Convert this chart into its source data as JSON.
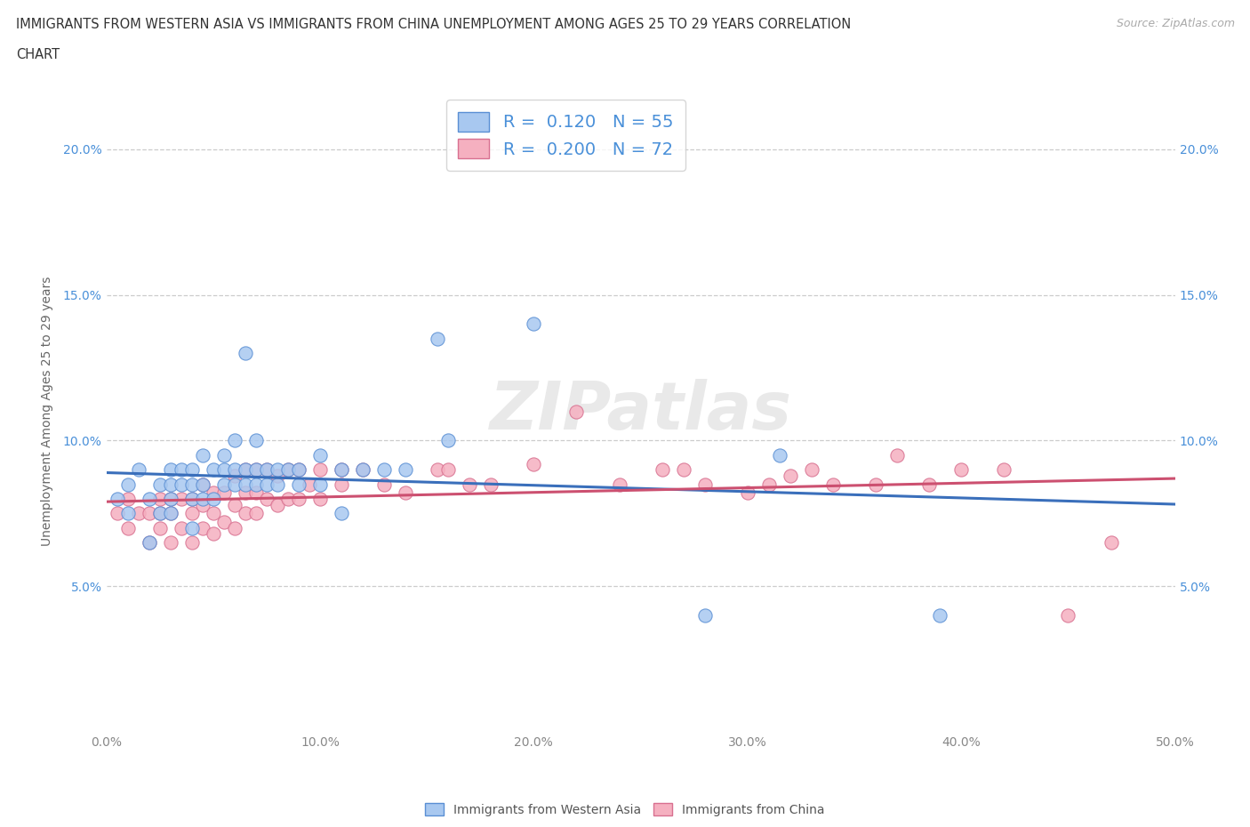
{
  "title_line1": "IMMIGRANTS FROM WESTERN ASIA VS IMMIGRANTS FROM CHINA UNEMPLOYMENT AMONG AGES 25 TO 29 YEARS CORRELATION",
  "title_line2": "CHART",
  "source": "Source: ZipAtlas.com",
  "ylabel": "Unemployment Among Ages 25 to 29 years",
  "xlim": [
    0.0,
    0.5
  ],
  "ylim": [
    0.0,
    0.22
  ],
  "xticks": [
    0.0,
    0.1,
    0.2,
    0.3,
    0.4,
    0.5
  ],
  "xticklabels": [
    "0.0%",
    "10.0%",
    "20.0%",
    "30.0%",
    "40.0%",
    "50.0%"
  ],
  "yticks": [
    0.0,
    0.05,
    0.1,
    0.15,
    0.2
  ],
  "yticklabels": [
    "",
    "5.0%",
    "10.0%",
    "15.0%",
    "20.0%"
  ],
  "R_blue": 0.12,
  "N_blue": 55,
  "R_pink": 0.2,
  "N_pink": 72,
  "blue_fill": "#a8c8f0",
  "blue_edge": "#5a8fd4",
  "pink_fill": "#f5b0c0",
  "pink_edge": "#d87090",
  "blue_line": "#3a6fbb",
  "pink_line": "#cc5070",
  "legend_color": "#4a90d9",
  "grid_color": "#cccccc",
  "blue_x": [
    0.005,
    0.01,
    0.01,
    0.015,
    0.02,
    0.02,
    0.025,
    0.025,
    0.03,
    0.03,
    0.03,
    0.03,
    0.035,
    0.035,
    0.04,
    0.04,
    0.04,
    0.04,
    0.045,
    0.045,
    0.045,
    0.05,
    0.05,
    0.055,
    0.055,
    0.055,
    0.06,
    0.06,
    0.06,
    0.065,
    0.065,
    0.065,
    0.07,
    0.07,
    0.07,
    0.075,
    0.075,
    0.08,
    0.08,
    0.085,
    0.09,
    0.09,
    0.1,
    0.1,
    0.11,
    0.11,
    0.12,
    0.13,
    0.14,
    0.155,
    0.16,
    0.2,
    0.28,
    0.315,
    0.39
  ],
  "blue_y": [
    0.08,
    0.085,
    0.075,
    0.09,
    0.065,
    0.08,
    0.075,
    0.085,
    0.075,
    0.08,
    0.085,
    0.09,
    0.085,
    0.09,
    0.07,
    0.08,
    0.085,
    0.09,
    0.08,
    0.085,
    0.095,
    0.08,
    0.09,
    0.085,
    0.09,
    0.095,
    0.085,
    0.09,
    0.1,
    0.085,
    0.09,
    0.13,
    0.085,
    0.09,
    0.1,
    0.085,
    0.09,
    0.085,
    0.09,
    0.09,
    0.085,
    0.09,
    0.085,
    0.095,
    0.09,
    0.075,
    0.09,
    0.09,
    0.09,
    0.135,
    0.1,
    0.14,
    0.04,
    0.095,
    0.04
  ],
  "pink_x": [
    0.005,
    0.01,
    0.01,
    0.015,
    0.02,
    0.02,
    0.025,
    0.025,
    0.025,
    0.03,
    0.03,
    0.03,
    0.035,
    0.035,
    0.04,
    0.04,
    0.04,
    0.045,
    0.045,
    0.045,
    0.05,
    0.05,
    0.05,
    0.055,
    0.055,
    0.06,
    0.06,
    0.06,
    0.065,
    0.065,
    0.065,
    0.07,
    0.07,
    0.07,
    0.075,
    0.075,
    0.08,
    0.08,
    0.085,
    0.085,
    0.09,
    0.09,
    0.095,
    0.1,
    0.1,
    0.11,
    0.11,
    0.12,
    0.13,
    0.14,
    0.155,
    0.16,
    0.17,
    0.18,
    0.2,
    0.22,
    0.24,
    0.26,
    0.27,
    0.28,
    0.3,
    0.31,
    0.32,
    0.33,
    0.34,
    0.36,
    0.37,
    0.385,
    0.4,
    0.42,
    0.45,
    0.47
  ],
  "pink_y": [
    0.075,
    0.07,
    0.08,
    0.075,
    0.065,
    0.075,
    0.07,
    0.075,
    0.08,
    0.065,
    0.075,
    0.08,
    0.07,
    0.08,
    0.065,
    0.075,
    0.08,
    0.07,
    0.078,
    0.085,
    0.068,
    0.075,
    0.082,
    0.072,
    0.082,
    0.07,
    0.078,
    0.088,
    0.075,
    0.082,
    0.09,
    0.075,
    0.082,
    0.09,
    0.08,
    0.09,
    0.078,
    0.088,
    0.08,
    0.09,
    0.08,
    0.09,
    0.085,
    0.08,
    0.09,
    0.085,
    0.09,
    0.09,
    0.085,
    0.082,
    0.09,
    0.09,
    0.085,
    0.085,
    0.092,
    0.11,
    0.085,
    0.09,
    0.09,
    0.085,
    0.082,
    0.085,
    0.088,
    0.09,
    0.085,
    0.085,
    0.095,
    0.085,
    0.09,
    0.09,
    0.04,
    0.065
  ]
}
